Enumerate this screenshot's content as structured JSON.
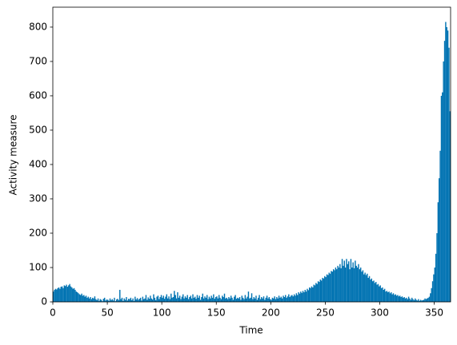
{
  "chart_data": {
    "type": "histogram",
    "x_label": "Time",
    "y_label": "Activity measure",
    "color": "#0173b2",
    "bins": [
      0,
      1,
      2,
      3,
      4,
      5,
      6,
      7,
      8,
      9,
      10,
      11,
      12,
      13,
      14,
      15,
      16,
      17,
      18,
      19,
      20,
      21,
      22,
      23,
      24,
      25,
      26,
      27,
      28,
      29,
      30,
      31,
      32,
      33,
      34,
      35,
      36,
      37,
      38,
      39,
      40,
      41,
      42,
      43,
      44,
      45,
      46,
      47,
      48,
      49,
      50,
      51,
      52,
      53,
      54,
      55,
      56,
      57,
      58,
      59,
      60,
      61,
      62,
      63,
      64,
      65,
      66,
      67,
      68,
      69,
      70,
      71,
      72,
      73,
      74,
      75,
      76,
      77,
      78,
      79,
      80,
      81,
      82,
      83,
      84,
      85,
      86,
      87,
      88,
      89,
      90,
      91,
      92,
      93,
      94,
      95,
      96,
      97,
      98,
      99,
      100,
      101,
      102,
      103,
      104,
      105,
      106,
      107,
      108,
      109,
      110,
      111,
      112,
      113,
      114,
      115,
      116,
      117,
      118,
      119,
      120,
      121,
      122,
      123,
      124,
      125,
      126,
      127,
      128,
      129,
      130,
      131,
      132,
      133,
      134,
      135,
      136,
      137,
      138,
      139,
      140,
      141,
      142,
      143,
      144,
      145,
      146,
      147,
      148,
      149,
      150,
      151,
      152,
      153,
      154,
      155,
      156,
      157,
      158,
      159,
      160,
      161,
      162,
      163,
      164,
      165,
      166,
      167,
      168,
      169,
      170,
      171,
      172,
      173,
      174,
      175,
      176,
      177,
      178,
      179,
      180,
      181,
      182,
      183,
      184,
      185,
      186,
      187,
      188,
      189,
      190,
      191,
      192,
      193,
      194,
      195,
      196,
      197,
      198,
      199,
      200,
      201,
      202,
      203,
      204,
      205,
      206,
      207,
      208,
      209,
      210,
      211,
      212,
      213,
      214,
      215,
      216,
      217,
      218,
      219,
      220,
      221,
      222,
      223,
      224,
      225,
      226,
      227,
      228,
      229,
      230,
      231,
      232,
      233,
      234,
      235,
      236,
      237,
      238,
      239,
      240,
      241,
      242,
      243,
      244,
      245,
      246,
      247,
      248,
      249,
      250,
      251,
      252,
      253,
      254,
      255,
      256,
      257,
      258,
      259,
      260,
      261,
      262,
      263,
      264,
      265,
      266,
      267,
      268,
      269,
      270,
      271,
      272,
      273,
      274,
      275,
      276,
      277,
      278,
      279,
      280,
      281,
      282,
      283,
      284,
      285,
      286,
      287,
      288,
      289,
      290,
      291,
      292,
      293,
      294,
      295,
      296,
      297,
      298,
      299,
      300,
      301,
      302,
      303,
      304,
      305,
      306,
      307,
      308,
      309,
      310,
      311,
      312,
      313,
      314,
      315,
      316,
      317,
      318,
      319,
      320,
      321,
      322,
      323,
      324,
      325,
      326,
      327,
      328,
      329,
      330,
      331,
      332,
      333,
      334,
      335,
      336,
      337,
      338,
      339,
      340,
      341,
      342,
      343,
      344,
      345,
      346,
      347,
      348,
      349,
      350,
      351,
      352,
      353,
      354,
      355,
      356,
      357,
      358,
      359,
      360,
      361,
      362,
      363,
      364,
      365
    ],
    "values": [
      30,
      35,
      38,
      36,
      40,
      42,
      38,
      44,
      45,
      40,
      48,
      46,
      50,
      44,
      48,
      52,
      45,
      42,
      38,
      40,
      35,
      30,
      28,
      25,
      22,
      20,
      24,
      18,
      20,
      15,
      18,
      12,
      15,
      10,
      14,
      8,
      12,
      10,
      16,
      8,
      5,
      10,
      3,
      8,
      6,
      2,
      9,
      12,
      4,
      7,
      6,
      3,
      10,
      5,
      8,
      4,
      12,
      2,
      7,
      9,
      5,
      35,
      8,
      12,
      3,
      10,
      6,
      14,
      4,
      9,
      8,
      12,
      5,
      10,
      3,
      15,
      7,
      11,
      6,
      9,
      12,
      4,
      15,
      8,
      10,
      20,
      6,
      13,
      9,
      18,
      10,
      7,
      22,
      12,
      5,
      15,
      18,
      8,
      14,
      20,
      12,
      18,
      9,
      15,
      22,
      10,
      16,
      8,
      24,
      12,
      14,
      32,
      20,
      10,
      28,
      12,
      18,
      8,
      15,
      22,
      10,
      16,
      12,
      20,
      8,
      14,
      18,
      10,
      22,
      12,
      15,
      9,
      20,
      12,
      18,
      6,
      14,
      24,
      10,
      16,
      12,
      20,
      8,
      15,
      10,
      18,
      12,
      22,
      9,
      14,
      16,
      10,
      20,
      12,
      8,
      18,
      14,
      24,
      10,
      12,
      8,
      14,
      10,
      18,
      12,
      6,
      15,
      20,
      9,
      12,
      10,
      14,
      6,
      18,
      12,
      8,
      20,
      10,
      15,
      30,
      10,
      12,
      25,
      8,
      14,
      10,
      18,
      6,
      12,
      20,
      8,
      14,
      10,
      16,
      6,
      12,
      18,
      10,
      14,
      8,
      6,
      12,
      10,
      16,
      8,
      14,
      10,
      18,
      12,
      15,
      10,
      18,
      14,
      20,
      12,
      16,
      22,
      14,
      18,
      20,
      16,
      22,
      18,
      25,
      20,
      28,
      24,
      30,
      26,
      32,
      28,
      35,
      30,
      38,
      34,
      42,
      40,
      45,
      42,
      50,
      48,
      55,
      52,
      60,
      58,
      65,
      62,
      70,
      68,
      75,
      72,
      80,
      78,
      85,
      82,
      90,
      88,
      95,
      92,
      100,
      95,
      105,
      100,
      110,
      98,
      125,
      105,
      120,
      100,
      125,
      110,
      118,
      95,
      125,
      100,
      115,
      98,
      120,
      105,
      100,
      110,
      95,
      100,
      88,
      92,
      80,
      85,
      78,
      82,
      70,
      75,
      65,
      68,
      60,
      62,
      55,
      58,
      50,
      52,
      45,
      48,
      40,
      42,
      35,
      38,
      30,
      32,
      28,
      30,
      25,
      28,
      22,
      25,
      20,
      22,
      18,
      20,
      16,
      18,
      14,
      16,
      12,
      14,
      10,
      12,
      8,
      15,
      10,
      6,
      12,
      8,
      5,
      10,
      6,
      4,
      8,
      3,
      6,
      4,
      5,
      6,
      10,
      8,
      10,
      12,
      15,
      25,
      40,
      60,
      80,
      100,
      140,
      200,
      290,
      360,
      440,
      600,
      610,
      700,
      760,
      815,
      800,
      790,
      740,
      555
    ],
    "xlim": [
      0,
      365
    ],
    "ylim": [
      0,
      858
    ],
    "xticks": [
      0,
      50,
      100,
      150,
      200,
      250,
      300,
      350
    ],
    "yticks": [
      0,
      100,
      200,
      300,
      400,
      500,
      600,
      700,
      800
    ]
  }
}
